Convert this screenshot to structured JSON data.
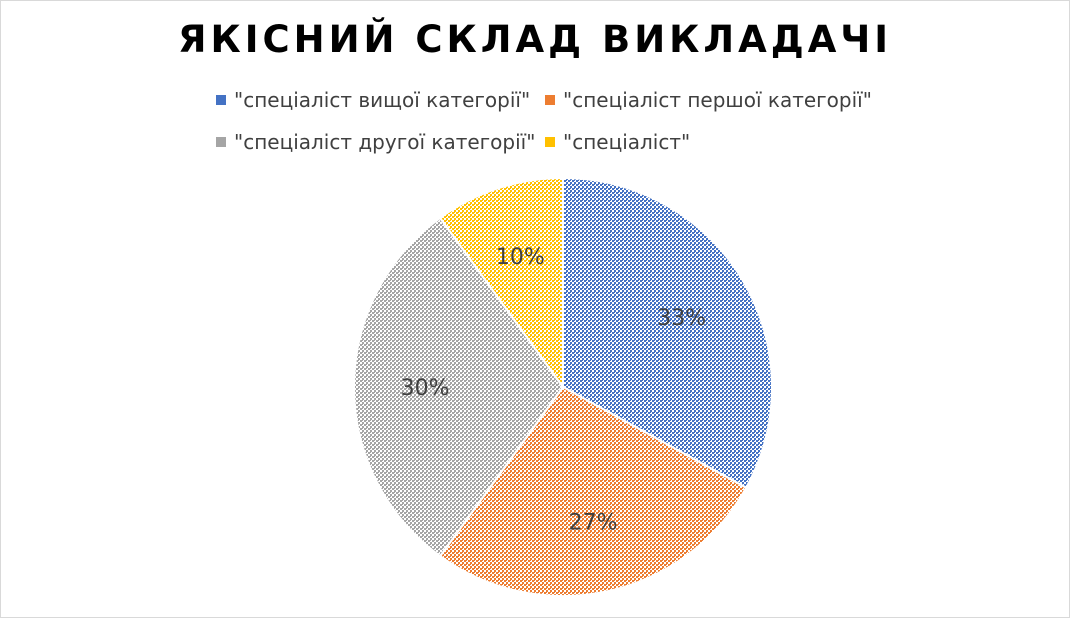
{
  "chart_data": {
    "type": "pie",
    "title": "ЯКІСНИЙ СКЛАД ВИКЛАДАЧІ",
    "categories": [
      "\"спеціаліст вищої категорії\"",
      "\"спеціаліст першої категорії\"",
      "\"спеціаліст другої категорії\"",
      "\"спеціаліст\""
    ],
    "values": [
      33,
      27,
      30,
      10
    ],
    "labels": [
      "33%",
      "27%",
      "30%",
      "10%"
    ],
    "colors": [
      "#4472c4",
      "#ed7d31",
      "#a5a5a5",
      "#ffc000"
    ],
    "legend_position": "top"
  }
}
